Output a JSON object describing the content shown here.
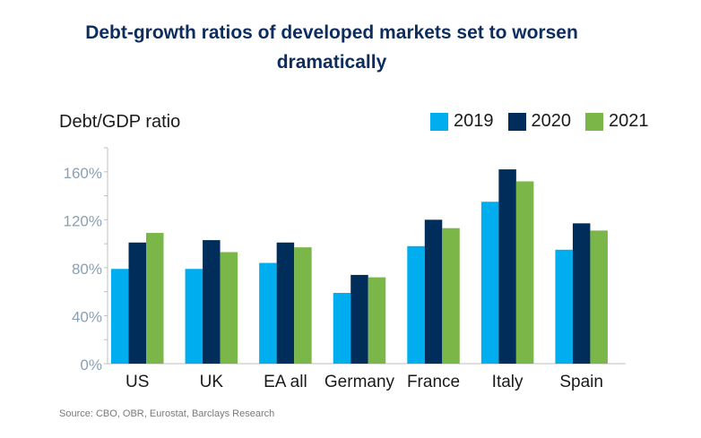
{
  "chart_data": {
    "type": "bar",
    "title": "Debt-growth ratios of developed markets set to worsen dramatically",
    "ylabel": "Debt/GDP ratio",
    "xlabel": "",
    "ylim": [
      0,
      180
    ],
    "yticks": [
      0,
      40,
      80,
      120,
      160
    ],
    "ytick_labels": [
      "0%",
      "40%",
      "80%",
      "120%",
      "160%"
    ],
    "grid": false,
    "legend_position": "top-right",
    "categories": [
      "US",
      "UK",
      "EA all",
      "Germany",
      "France",
      "Italy",
      "Spain"
    ],
    "series": [
      {
        "name": "2019",
        "color": "#00aeef",
        "values": [
          79,
          79,
          84,
          59,
          98,
          135,
          95
        ]
      },
      {
        "name": "2020",
        "color": "#002d5a",
        "values": [
          101,
          103,
          101,
          74,
          120,
          162,
          117
        ]
      },
      {
        "name": "2021",
        "color": "#7ab648",
        "values": [
          109,
          93,
          97,
          72,
          113,
          152,
          111
        ]
      }
    ]
  },
  "source": "Source: CBO, OBR, Eurostat, Barclays Research"
}
